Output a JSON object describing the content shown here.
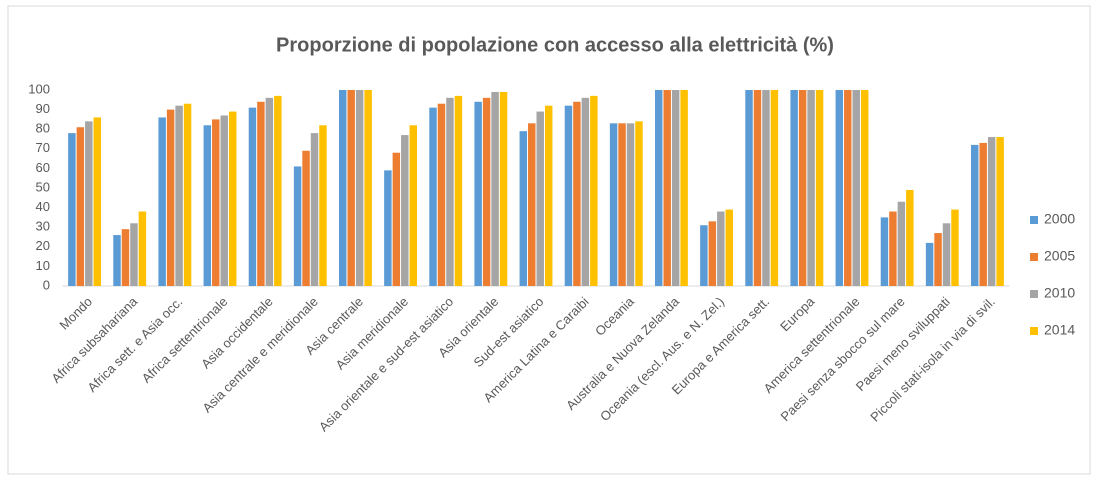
{
  "chart_data": {
    "type": "bar",
    "title": "Proporzione di popolazione con accesso alla elettricità (%)",
    "categories": [
      "Mondo",
      "Africa subsahariana",
      "Africa sett. e Asia occ.",
      "Africa settentrionale",
      "Asia occidentale",
      "Asia centrale e meridionale",
      "Asia centrale",
      "Asia meridionale",
      "Asia orientale e sud-est asiatico",
      "Asia orientale",
      "Sud-est asiatico",
      "America Latina e Caraibi",
      "Oceania",
      "Australia e Nuova Zelanda",
      "Oceania (escl. Aus. e N. Zel.)",
      "Europa e America sett.",
      "Europa",
      "America settentrionale",
      "Paesi senza sbocco sul mare",
      "Paesi meno sviluppati",
      "Piccoli stati-isola in via di svil."
    ],
    "series": [
      {
        "name": "2000",
        "color": "#5b9bd5",
        "values": [
          78,
          26,
          86,
          82,
          91,
          61,
          100,
          59,
          91,
          94,
          79,
          92,
          83,
          100,
          31,
          100,
          100,
          100,
          35,
          22,
          72
        ]
      },
      {
        "name": "2005",
        "color": "#ed7d31",
        "values": [
          81,
          29,
          90,
          85,
          94,
          69,
          100,
          68,
          93,
          96,
          83,
          94,
          83,
          100,
          33,
          100,
          100,
          100,
          38,
          27,
          73
        ]
      },
      {
        "name": "2010",
        "color": "#a5a5a5",
        "values": [
          84,
          32,
          92,
          87,
          96,
          78,
          100,
          77,
          96,
          99,
          89,
          96,
          83,
          100,
          38,
          100,
          100,
          100,
          43,
          32,
          76
        ]
      },
      {
        "name": "2014",
        "color": "#ffc000",
        "values": [
          86,
          38,
          93,
          89,
          97,
          82,
          100,
          82,
          97,
          99,
          92,
          97,
          84,
          100,
          39,
          100,
          100,
          100,
          49,
          39,
          76
        ]
      }
    ],
    "ylim": [
      0,
      100
    ],
    "yticks": [
      0,
      10,
      20,
      30,
      40,
      50,
      60,
      70,
      80,
      90,
      100
    ],
    "grid": false,
    "legend": "right"
  }
}
